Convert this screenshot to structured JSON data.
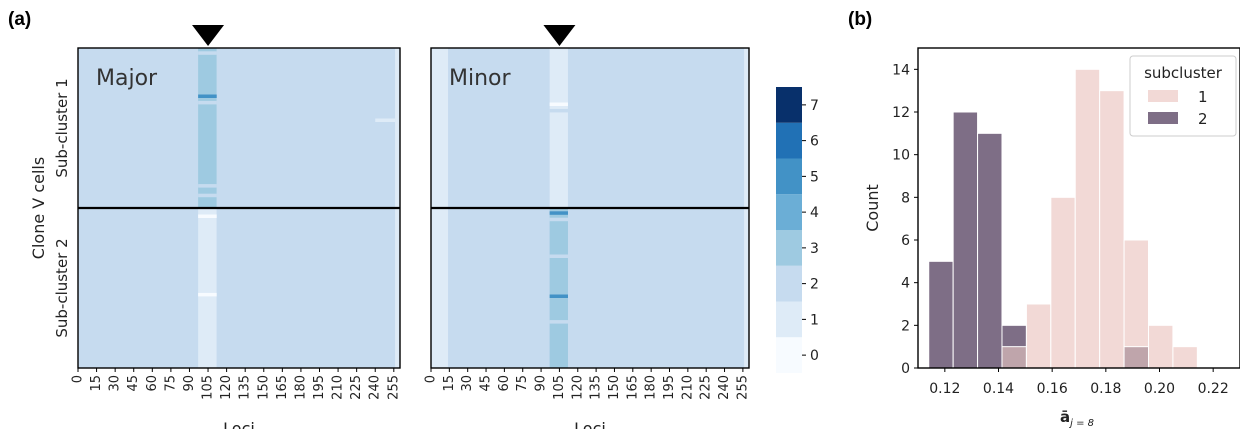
{
  "panel_a_label": "(a)",
  "panel_b_label": "(b)",
  "colors": {
    "heat_scale": [
      "#f7fbff",
      "#deebf7",
      "#c6dbef",
      "#9ecae1",
      "#6baed6",
      "#4292c6",
      "#2171b5",
      "#08306b"
    ],
    "hist_subcluster_1": "#f2d9d6",
    "hist_subcluster_2": "#7e6e86",
    "hist_overlap": "#bfa5ab",
    "divider": "#000000"
  },
  "chart_data": [
    {
      "type": "heatmap",
      "title": "Major",
      "ylabel": "Clone V cells",
      "row_group_labels": [
        "Sub-cluster 1",
        "Sub-cluster 2"
      ],
      "xlabel": "Loci",
      "x_ticks": [
        0,
        15,
        30,
        45,
        60,
        75,
        90,
        105,
        120,
        135,
        150,
        165,
        180,
        195,
        210,
        225,
        240,
        255
      ],
      "x_range": [
        0,
        260
      ],
      "marker": "triangle-down",
      "marker_locus": 105,
      "background_value": 2,
      "band": {
        "x_range": [
          97,
          112
        ]
      },
      "column_segments": [
        {
          "x_range": [
            0,
            97
          ],
          "group": "Sub-cluster 1",
          "value": 2
        },
        {
          "x_range": [
            0,
            97
          ],
          "group": "Sub-cluster 2",
          "value": 2
        },
        {
          "x_range": [
            97,
            112
          ],
          "group": "Sub-cluster 1",
          "value": 3
        },
        {
          "x_range": [
            97,
            112
          ],
          "group": "Sub-cluster 2",
          "value": 1
        },
        {
          "x_range": [
            112,
            256
          ],
          "group": "Sub-cluster 1",
          "value": 2
        },
        {
          "x_range": [
            112,
            256
          ],
          "group": "Sub-cluster 2",
          "value": 2
        },
        {
          "x_range": [
            256,
            260
          ],
          "group": "Sub-cluster 1",
          "value": 1
        },
        {
          "x_range": [
            256,
            260
          ],
          "group": "Sub-cluster 2",
          "value": 1
        }
      ],
      "row_features": [
        {
          "row_fraction": 0.03,
          "x_range": [
            97,
            112
          ],
          "value": 2
        },
        {
          "row_fraction": 0.3,
          "x_range": [
            97,
            112
          ],
          "value": 5
        },
        {
          "row_fraction": 0.34,
          "x_range": [
            97,
            112
          ],
          "value": 2
        },
        {
          "row_fraction": 0.45,
          "x_range": [
            240,
            256
          ],
          "value": 1
        },
        {
          "row_fraction": 0.86,
          "x_range": [
            97,
            112
          ],
          "value": 2
        },
        {
          "row_fraction": 0.92,
          "x_range": [
            97,
            112
          ],
          "value": 2
        },
        {
          "row_fraction": 1.05,
          "x_range": [
            97,
            112
          ],
          "value": 0
        },
        {
          "row_fraction": 1.54,
          "x_range": [
            97,
            112
          ],
          "value": 0
        }
      ]
    },
    {
      "type": "heatmap",
      "title": "Minor",
      "xlabel": "Loci",
      "x_ticks": [
        0,
        15,
        30,
        45,
        60,
        75,
        90,
        105,
        120,
        135,
        150,
        165,
        180,
        195,
        210,
        225,
        240,
        255
      ],
      "x_range": [
        0,
        260
      ],
      "marker": "triangle-down",
      "marker_locus": 105,
      "background_value": 2,
      "band": {
        "x_range": [
          97,
          112
        ]
      },
      "column_segments": [
        {
          "x_range": [
            0,
            14
          ],
          "group": "Sub-cluster 1",
          "value": 1
        },
        {
          "x_range": [
            0,
            14
          ],
          "group": "Sub-cluster 2",
          "value": 1
        },
        {
          "x_range": [
            14,
            97
          ],
          "group": "Sub-cluster 1",
          "value": 2
        },
        {
          "x_range": [
            14,
            97
          ],
          "group": "Sub-cluster 2",
          "value": 2
        },
        {
          "x_range": [
            97,
            112
          ],
          "group": "Sub-cluster 1",
          "value": 1
        },
        {
          "x_range": [
            97,
            112
          ],
          "group": "Sub-cluster 2",
          "value": 3
        },
        {
          "x_range": [
            112,
            256
          ],
          "group": "Sub-cluster 1",
          "value": 2
        },
        {
          "x_range": [
            112,
            256
          ],
          "group": "Sub-cluster 2",
          "value": 2
        },
        {
          "x_range": [
            256,
            260
          ],
          "group": "Sub-cluster 1",
          "value": 1
        },
        {
          "x_range": [
            256,
            260
          ],
          "group": "Sub-cluster 2",
          "value": 1
        }
      ],
      "row_features": [
        {
          "row_fraction": 0.35,
          "x_range": [
            97,
            112
          ],
          "value": 0
        },
        {
          "row_fraction": 0.39,
          "x_range": [
            97,
            112
          ],
          "value": 2
        },
        {
          "row_fraction": 1.03,
          "x_range": [
            97,
            112
          ],
          "value": 5
        },
        {
          "row_fraction": 1.07,
          "x_range": [
            97,
            112
          ],
          "value": 2
        },
        {
          "row_fraction": 1.3,
          "x_range": [
            97,
            112
          ],
          "value": 2
        },
        {
          "row_fraction": 1.55,
          "x_range": [
            97,
            112
          ],
          "value": 5
        },
        {
          "row_fraction": 1.71,
          "x_range": [
            97,
            112
          ],
          "value": 2
        }
      ]
    },
    {
      "type": "colorbar",
      "levels": [
        0,
        1,
        2,
        3,
        4,
        5,
        6,
        7
      ],
      "tick_labels": [
        "0",
        "1",
        "2",
        "3",
        "4",
        "5",
        "6",
        "7"
      ]
    },
    {
      "type": "bar",
      "xlabel_main": "ā",
      "xlabel_sub": "j = 8",
      "ylabel": "Count",
      "xlim": [
        0.11,
        0.23
      ],
      "ylim": [
        0,
        15
      ],
      "x_ticks": [
        0.12,
        0.14,
        0.16,
        0.18,
        0.2,
        0.22
      ],
      "x_tick_labels": [
        "0.12",
        "0.14",
        "0.16",
        "0.18",
        "0.20",
        "0.22"
      ],
      "y_ticks": [
        0,
        2,
        4,
        6,
        8,
        10,
        12,
        14
      ],
      "bin_edges": [
        0.114,
        0.1231,
        0.1322,
        0.1413,
        0.1504,
        0.1595,
        0.1686,
        0.1777,
        0.1868,
        0.1959,
        0.205,
        0.2141,
        0.2232
      ],
      "legend_title": "subcluster",
      "legend_position": "top-right",
      "series": [
        {
          "name": "1",
          "values": [
            0,
            0,
            0,
            1,
            3,
            8,
            14,
            13,
            6,
            2,
            1,
            0
          ]
        },
        {
          "name": "2",
          "values": [
            5,
            12,
            11,
            2,
            0,
            0,
            0,
            0,
            1,
            0,
            0,
            0
          ]
        }
      ]
    }
  ]
}
